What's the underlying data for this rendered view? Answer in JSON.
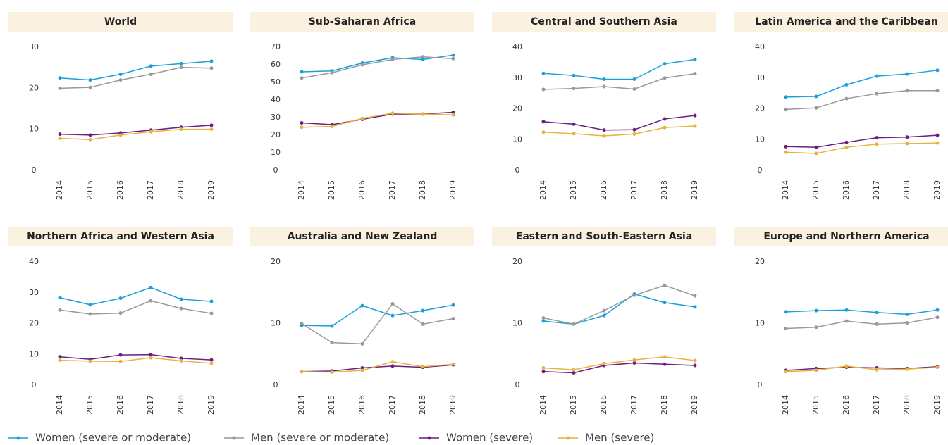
{
  "chart_data": [
    {
      "type": "line",
      "title": "World",
      "categories": [
        "2014",
        "2015",
        "2016",
        "2017",
        "2018",
        "2019"
      ],
      "ylim": [
        0,
        30
      ],
      "yticks": [
        0,
        10,
        20,
        30
      ],
      "series": [
        {
          "values": [
            22.5,
            22,
            23.4,
            25.4,
            26,
            26.6
          ]
        },
        {
          "values": [
            20,
            20.2,
            22,
            23.4,
            25.1,
            24.9
          ]
        },
        {
          "values": [
            8.8,
            8.6,
            9.1,
            9.8,
            10.5,
            11
          ]
        },
        {
          "values": [
            7.8,
            7.5,
            8.6,
            9.4,
            10,
            10
          ]
        }
      ]
    },
    {
      "type": "line",
      "title": "Sub-Saharan Africa",
      "categories": [
        "2014",
        "2015",
        "2016",
        "2017",
        "2018",
        "2019"
      ],
      "ylim": [
        0,
        70
      ],
      "yticks": [
        0,
        10,
        20,
        30,
        40,
        50,
        60,
        70
      ],
      "series": [
        {
          "values": [
            56,
            56.5,
            61,
            64,
            63,
            65.5
          ]
        },
        {
          "values": [
            52.5,
            55.5,
            60,
            63,
            64.5,
            63.5
          ]
        },
        {
          "values": [
            27,
            26,
            29,
            32,
            32,
            33
          ]
        },
        {
          "values": [
            24.5,
            25,
            29.5,
            32.5,
            32,
            31.5
          ]
        }
      ]
    },
    {
      "type": "line",
      "title": "Central and Southern Asia",
      "categories": [
        "2014",
        "2015",
        "2016",
        "2017",
        "2018",
        "2019"
      ],
      "ylim": [
        0,
        40
      ],
      "yticks": [
        0,
        10,
        20,
        30,
        40
      ],
      "series": [
        {
          "values": [
            31.5,
            30.8,
            29.6,
            29.6,
            34.6,
            36
          ]
        },
        {
          "values": [
            26.3,
            26.6,
            27.2,
            26.4,
            30,
            31.4
          ]
        },
        {
          "values": [
            15.8,
            15,
            13.1,
            13.2,
            16.7,
            17.8
          ]
        },
        {
          "values": [
            12.4,
            11.9,
            11.2,
            11.8,
            13.9,
            14.4
          ]
        }
      ]
    },
    {
      "type": "line",
      "title": "Latin America and the Caribbean",
      "categories": [
        "2014",
        "2015",
        "2016",
        "2017",
        "2018",
        "2019"
      ],
      "ylim": [
        0,
        40
      ],
      "yticks": [
        0,
        10,
        20,
        30,
        40
      ],
      "series": [
        {
          "values": [
            23.8,
            24,
            27.8,
            30.6,
            31.3,
            32.5
          ]
        },
        {
          "values": [
            19.8,
            20.3,
            23.3,
            24.9,
            25.9,
            25.9
          ]
        },
        {
          "values": [
            7.7,
            7.5,
            9.1,
            10.6,
            10.8,
            11.4
          ]
        },
        {
          "values": [
            5.9,
            5.5,
            7.5,
            8.5,
            8.7,
            8.9
          ]
        }
      ]
    },
    {
      "type": "line",
      "title": "Northern Africa and Western Asia",
      "categories": [
        "2014",
        "2015",
        "2016",
        "2017",
        "2018",
        "2019"
      ],
      "ylim": [
        0,
        40
      ],
      "yticks": [
        0,
        10,
        20,
        30,
        40
      ],
      "series": [
        {
          "values": [
            28.4,
            26.1,
            28.2,
            31.7,
            27.9,
            27.2
          ]
        },
        {
          "values": [
            24.4,
            23.1,
            23.4,
            27.4,
            24.9,
            23.3
          ]
        },
        {
          "values": [
            9.2,
            8.4,
            9.8,
            9.9,
            8.7,
            8.2
          ]
        },
        {
          "values": [
            8.1,
            7.8,
            7.7,
            8.9,
            7.9,
            7.1
          ]
        }
      ]
    },
    {
      "type": "line",
      "title": "Australia and New Zealand",
      "categories": [
        "2014",
        "2015",
        "2016",
        "2017",
        "2018",
        "2019"
      ],
      "ylim": [
        0,
        20
      ],
      "yticks": [
        0,
        10,
        20
      ],
      "series": [
        {
          "values": [
            9.7,
            9.6,
            12.9,
            11.3,
            12.1,
            13
          ]
        },
        {
          "values": [
            10,
            6.9,
            6.7,
            13.2,
            9.9,
            10.8
          ]
        },
        {
          "values": [
            2.2,
            2.3,
            2.8,
            3.1,
            2.9,
            3.3
          ]
        },
        {
          "values": [
            2.2,
            2.1,
            2.4,
            3.8,
            3.0,
            3.4
          ]
        }
      ]
    },
    {
      "type": "line",
      "title": "Eastern and South-Eastern Asia",
      "categories": [
        "2014",
        "2015",
        "2016",
        "2017",
        "2018",
        "2019"
      ],
      "ylim": [
        0,
        20
      ],
      "yticks": [
        0,
        10,
        20
      ],
      "series": [
        {
          "values": [
            10.4,
            9.9,
            11.3,
            14.8,
            13.4,
            12.7
          ]
        },
        {
          "values": [
            10.9,
            9.9,
            12.1,
            14.6,
            16.2,
            14.5
          ]
        },
        {
          "values": [
            2.2,
            2.0,
            3.2,
            3.6,
            3.4,
            3.2
          ]
        },
        {
          "values": [
            2.8,
            2.5,
            3.5,
            4.1,
            4.6,
            4.0
          ]
        }
      ]
    },
    {
      "type": "line",
      "title": "Europe and Northern America",
      "categories": [
        "2014",
        "2015",
        "2016",
        "2017",
        "2018",
        "2019"
      ],
      "ylim": [
        0,
        20
      ],
      "yticks": [
        0,
        10,
        20
      ],
      "series": [
        {
          "values": [
            11.9,
            12.1,
            12.2,
            11.8,
            11.5,
            12.2
          ]
        },
        {
          "values": [
            9.2,
            9.4,
            10.4,
            9.9,
            10.1,
            11.0
          ]
        },
        {
          "values": [
            2.4,
            2.7,
            2.9,
            2.8,
            2.7,
            3.0
          ]
        },
        {
          "values": [
            2.2,
            2.4,
            3.1,
            2.5,
            2.6,
            2.9
          ]
        }
      ]
    }
  ],
  "legend": [
    {
      "name": "Women (severe or moderate)",
      "color": "#1a9fd9"
    },
    {
      "name": "Men (severe or moderate)",
      "color": "#999999"
    },
    {
      "name": "Women (severe)",
      "color": "#6b1e7f"
    },
    {
      "name": "Men (severe)",
      "color": "#e6b33e"
    }
  ]
}
